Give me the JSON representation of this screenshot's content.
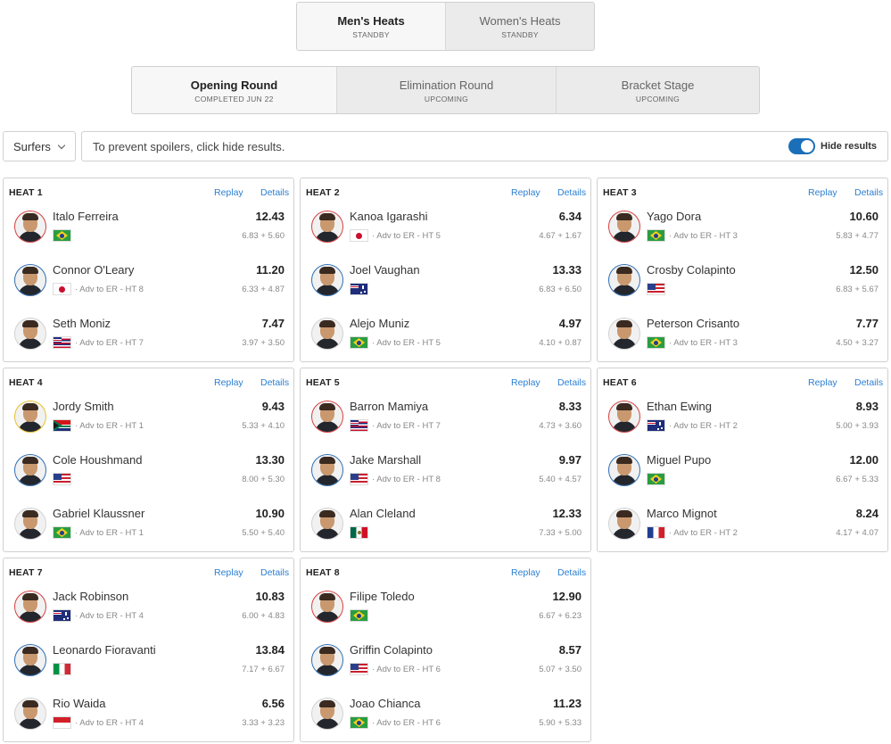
{
  "gender_tabs": [
    {
      "label": "Men's Heats",
      "sub": "STANDBY",
      "active": true
    },
    {
      "label": "Women's Heats",
      "sub": "STANDBY",
      "active": false
    }
  ],
  "round_tabs": [
    {
      "label": "Opening Round",
      "sub": "COMPLETED JUN 22",
      "active": true
    },
    {
      "label": "Elimination Round",
      "sub": "UPCOMING",
      "active": false
    },
    {
      "label": "Bracket Stage",
      "sub": "UPCOMING",
      "active": false
    }
  ],
  "filter": {
    "dropdown_label": "Surfers",
    "notice": "To prevent spoilers, click hide results.",
    "toggle_label": "Hide results",
    "toggle_on": true
  },
  "heat_actions": {
    "replay": "Replay",
    "details": "Details"
  },
  "heats": [
    {
      "title": "HEAT 1",
      "surfers": [
        {
          "name": "Italo Ferreira",
          "total": "12.43",
          "waves": "6.83 + 5.60",
          "flag": "br",
          "adv": "",
          "jersey": "red"
        },
        {
          "name": "Connor O'Leary",
          "total": "11.20",
          "waves": "6.33 + 4.87",
          "flag": "jp",
          "adv": "· Adv to ER - HT 8",
          "jersey": "blue"
        },
        {
          "name": "Seth Moniz",
          "total": "7.47",
          "waves": "3.97 + 3.50",
          "flag": "hi",
          "adv": "· Adv to ER - HT 7",
          "jersey": "white"
        }
      ]
    },
    {
      "title": "HEAT 2",
      "surfers": [
        {
          "name": "Kanoa Igarashi",
          "total": "6.34",
          "waves": "4.67 + 1.67",
          "flag": "jp",
          "adv": "· Adv to ER - HT 5",
          "jersey": "red"
        },
        {
          "name": "Joel Vaughan",
          "total": "13.33",
          "waves": "6.83 + 6.50",
          "flag": "au",
          "adv": "",
          "jersey": "blue"
        },
        {
          "name": "Alejo Muniz",
          "total": "4.97",
          "waves": "4.10 + 0.87",
          "flag": "br",
          "adv": "· Adv to ER - HT 5",
          "jersey": "white"
        }
      ]
    },
    {
      "title": "HEAT 3",
      "surfers": [
        {
          "name": "Yago Dora",
          "total": "10.60",
          "waves": "5.83 + 4.77",
          "flag": "br",
          "adv": "· Adv to ER - HT 3",
          "jersey": "red"
        },
        {
          "name": "Crosby Colapinto",
          "total": "12.50",
          "waves": "6.83 + 5.67",
          "flag": "us",
          "adv": "",
          "jersey": "blue"
        },
        {
          "name": "Peterson Crisanto",
          "total": "7.77",
          "waves": "4.50 + 3.27",
          "flag": "br",
          "adv": "· Adv to ER - HT 3",
          "jersey": "white"
        }
      ]
    },
    {
      "title": "HEAT 4",
      "surfers": [
        {
          "name": "Jordy Smith",
          "total": "9.43",
          "waves": "5.33 + 4.10",
          "flag": "za",
          "adv": "· Adv to ER - HT 1",
          "jersey": "yellow"
        },
        {
          "name": "Cole Houshmand",
          "total": "13.30",
          "waves": "8.00 + 5.30",
          "flag": "us",
          "adv": "",
          "jersey": "blue"
        },
        {
          "name": "Gabriel Klaussner",
          "total": "10.90",
          "waves": "5.50 + 5.40",
          "flag": "br",
          "adv": "· Adv to ER - HT 1",
          "jersey": "white"
        }
      ]
    },
    {
      "title": "HEAT 5",
      "surfers": [
        {
          "name": "Barron Mamiya",
          "total": "8.33",
          "waves": "4.73 + 3.60",
          "flag": "hi",
          "adv": "· Adv to ER - HT 7",
          "jersey": "red"
        },
        {
          "name": "Jake Marshall",
          "total": "9.97",
          "waves": "5.40 + 4.57",
          "flag": "us",
          "adv": "· Adv to ER - HT 8",
          "jersey": "blue"
        },
        {
          "name": "Alan Cleland",
          "total": "12.33",
          "waves": "7.33 + 5.00",
          "flag": "mx",
          "adv": "",
          "jersey": "white"
        }
      ]
    },
    {
      "title": "HEAT 6",
      "surfers": [
        {
          "name": "Ethan Ewing",
          "total": "8.93",
          "waves": "5.00 + 3.93",
          "flag": "au",
          "adv": "· Adv to ER - HT 2",
          "jersey": "red"
        },
        {
          "name": "Miguel Pupo",
          "total": "12.00",
          "waves": "6.67 + 5.33",
          "flag": "br",
          "adv": "",
          "jersey": "blue"
        },
        {
          "name": "Marco Mignot",
          "total": "8.24",
          "waves": "4.17 + 4.07",
          "flag": "fr",
          "adv": "· Adv to ER - HT 2",
          "jersey": "white"
        }
      ]
    },
    {
      "title": "HEAT 7",
      "surfers": [
        {
          "name": "Jack Robinson",
          "total": "10.83",
          "waves": "6.00 + 4.83",
          "flag": "au",
          "adv": "· Adv to ER - HT 4",
          "jersey": "red"
        },
        {
          "name": "Leonardo Fioravanti",
          "total": "13.84",
          "waves": "7.17 + 6.67",
          "flag": "it",
          "adv": "",
          "jersey": "blue"
        },
        {
          "name": "Rio Waida",
          "total": "6.56",
          "waves": "3.33 + 3.23",
          "flag": "id",
          "adv": "· Adv to ER - HT 4",
          "jersey": "white"
        }
      ]
    },
    {
      "title": "HEAT 8",
      "surfers": [
        {
          "name": "Filipe Toledo",
          "total": "12.90",
          "waves": "6.67 + 6.23",
          "flag": "br",
          "adv": "",
          "jersey": "red"
        },
        {
          "name": "Griffin Colapinto",
          "total": "8.57",
          "waves": "5.07 + 3.50",
          "flag": "us",
          "adv": "· Adv to ER - HT 6",
          "jersey": "blue"
        },
        {
          "name": "Joao Chianca",
          "total": "11.23",
          "waves": "5.90 + 5.33",
          "flag": "br",
          "adv": "· Adv to ER - HT 6",
          "jersey": "white"
        }
      ]
    }
  ]
}
